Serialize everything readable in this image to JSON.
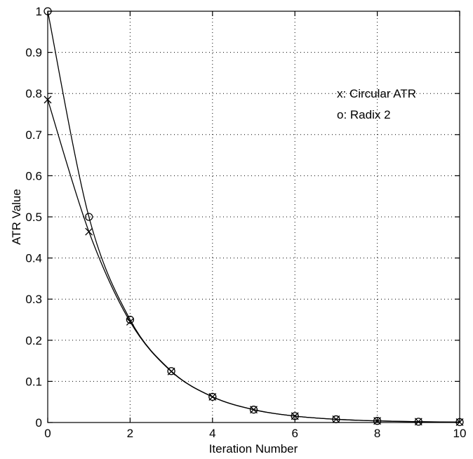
{
  "chart_data": {
    "type": "line",
    "title": "",
    "xlabel": "Iteration Number",
    "ylabel": "ATR Value",
    "xlim": [
      0,
      10
    ],
    "ylim": [
      0,
      1
    ],
    "xticks": [
      0,
      2,
      4,
      6,
      8,
      10
    ],
    "xtick_labels": [
      "0",
      "2",
      "4",
      "6",
      "8",
      "10"
    ],
    "yticks": [
      0,
      0.1,
      0.2,
      0.3,
      0.4,
      0.5,
      0.6,
      0.7,
      0.8,
      0.9,
      1
    ],
    "ytick_labels": [
      "0",
      "0.1",
      "0.2",
      "0.3",
      "0.4",
      "0.5",
      "0.6",
      "0.7",
      "0.8",
      "0.9",
      "1"
    ],
    "grid": true,
    "grid_style": "dotted",
    "legend_position": "top-right",
    "series": [
      {
        "name": "Circular ATR",
        "legend_label": "x: Circular ATR",
        "marker": "x",
        "x": [
          0,
          1,
          2,
          3,
          4,
          5,
          6,
          7,
          8,
          9,
          10
        ],
        "values": [
          0.785,
          0.464,
          0.245,
          0.124,
          0.0624,
          0.0312,
          0.0156,
          0.0078,
          0.0039,
          0.002,
          0.001
        ]
      },
      {
        "name": "Radix 2",
        "legend_label": "o: Radix 2",
        "marker": "o",
        "x": [
          0,
          1,
          2,
          3,
          4,
          5,
          6,
          7,
          8,
          9,
          10
        ],
        "values": [
          1,
          0.5,
          0.25,
          0.125,
          0.0625,
          0.03125,
          0.015625,
          0.0078125,
          0.00390625,
          0.001953,
          0.000977
        ]
      }
    ]
  }
}
